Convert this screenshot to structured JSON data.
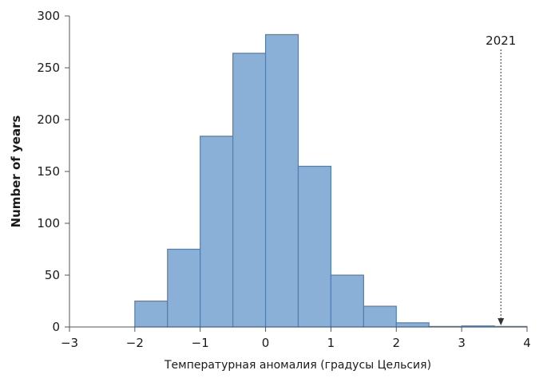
{
  "chart_data": {
    "type": "bar",
    "subtype": "histogram",
    "xlabel": "Температурная аномалия (градусы Цельсия)",
    "ylabel": "Number of years",
    "xlim": [
      -3,
      4
    ],
    "ylim": [
      0,
      300
    ],
    "x_ticks": [
      -3,
      -2,
      -1,
      0,
      1,
      2,
      3,
      4
    ],
    "x_tick_labels": [
      "−3",
      "−2",
      "−1",
      "0",
      "1",
      "2",
      "3",
      "4"
    ],
    "y_ticks": [
      0,
      50,
      100,
      150,
      200,
      250,
      300
    ],
    "y_tick_labels": [
      "0",
      "50",
      "100",
      "150",
      "200",
      "250",
      "300"
    ],
    "bins": [
      {
        "start": -2.5,
        "end": -2.0,
        "value": 0
      },
      {
        "start": -2.0,
        "end": -1.5,
        "value": 25
      },
      {
        "start": -1.5,
        "end": -1.0,
        "value": 75
      },
      {
        "start": -1.0,
        "end": -0.5,
        "value": 184
      },
      {
        "start": -0.5,
        "end": 0.0,
        "value": 264
      },
      {
        "start": 0.0,
        "end": 0.5,
        "value": 282
      },
      {
        "start": 0.5,
        "end": 1.0,
        "value": 155
      },
      {
        "start": 1.0,
        "end": 1.5,
        "value": 50
      },
      {
        "start": 1.5,
        "end": 2.0,
        "value": 20
      },
      {
        "start": 2.0,
        "end": 2.5,
        "value": 4
      },
      {
        "start": 2.5,
        "end": 3.0,
        "value": 0.5
      },
      {
        "start": 3.0,
        "end": 3.5,
        "value": 1
      },
      {
        "start": 3.5,
        "end": 4.0,
        "value": 0.5
      }
    ],
    "bar_color": "#8ab0d7",
    "bar_edge_color": "#4f7faf",
    "grid": false,
    "annotation": {
      "label": "2021",
      "x": 3.6
    }
  }
}
